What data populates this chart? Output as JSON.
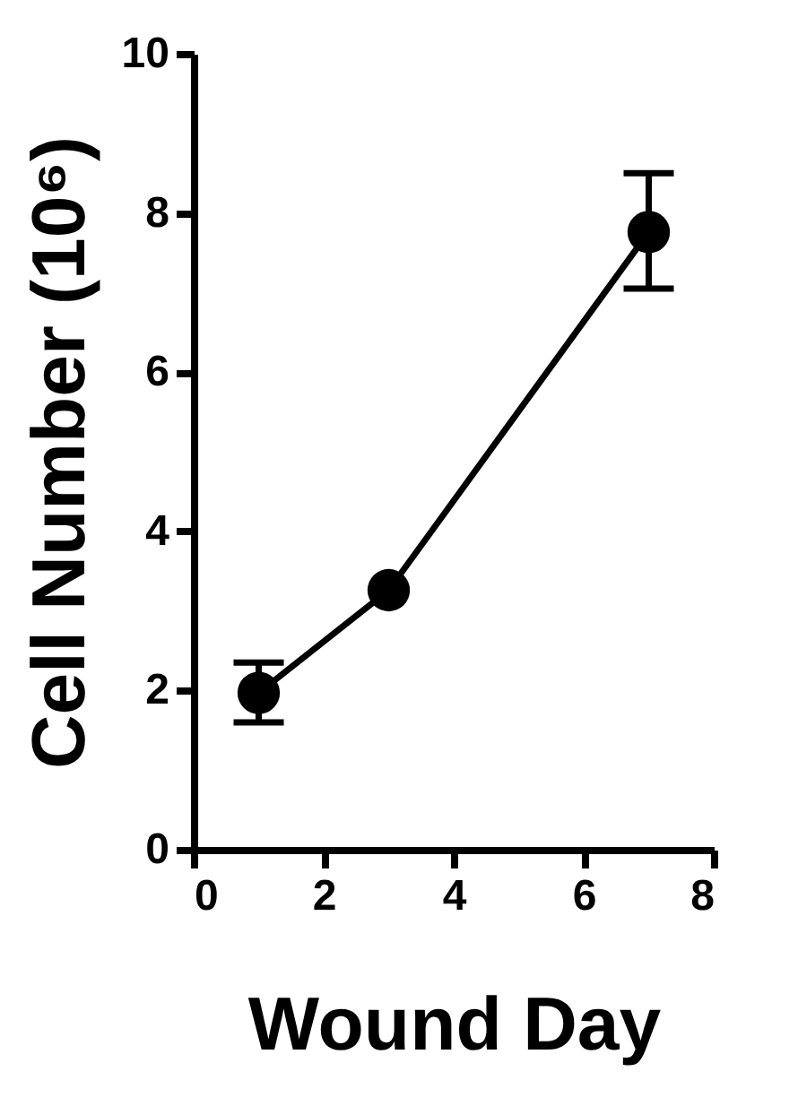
{
  "chart_data": {
    "type": "line",
    "xlabel": "Wound Day",
    "ylabel": "Cell Number (10⁶)",
    "x": [
      1,
      3,
      7
    ],
    "series": [
      {
        "color": "#000000",
        "values": [
          1.97,
          3.26,
          7.76
        ],
        "errors": [
          [
            1.6,
            2.35
          ],
          null,
          [
            7.05,
            8.5
          ]
        ]
      }
    ],
    "xlim": [
      0,
      8
    ],
    "xticks": [
      0,
      2,
      4,
      6,
      8
    ],
    "ylim": [
      0,
      10
    ],
    "yticks": [
      0,
      2,
      4,
      6,
      8,
      10
    ],
    "grid": false,
    "marker": "circle",
    "line_style": "solid"
  }
}
